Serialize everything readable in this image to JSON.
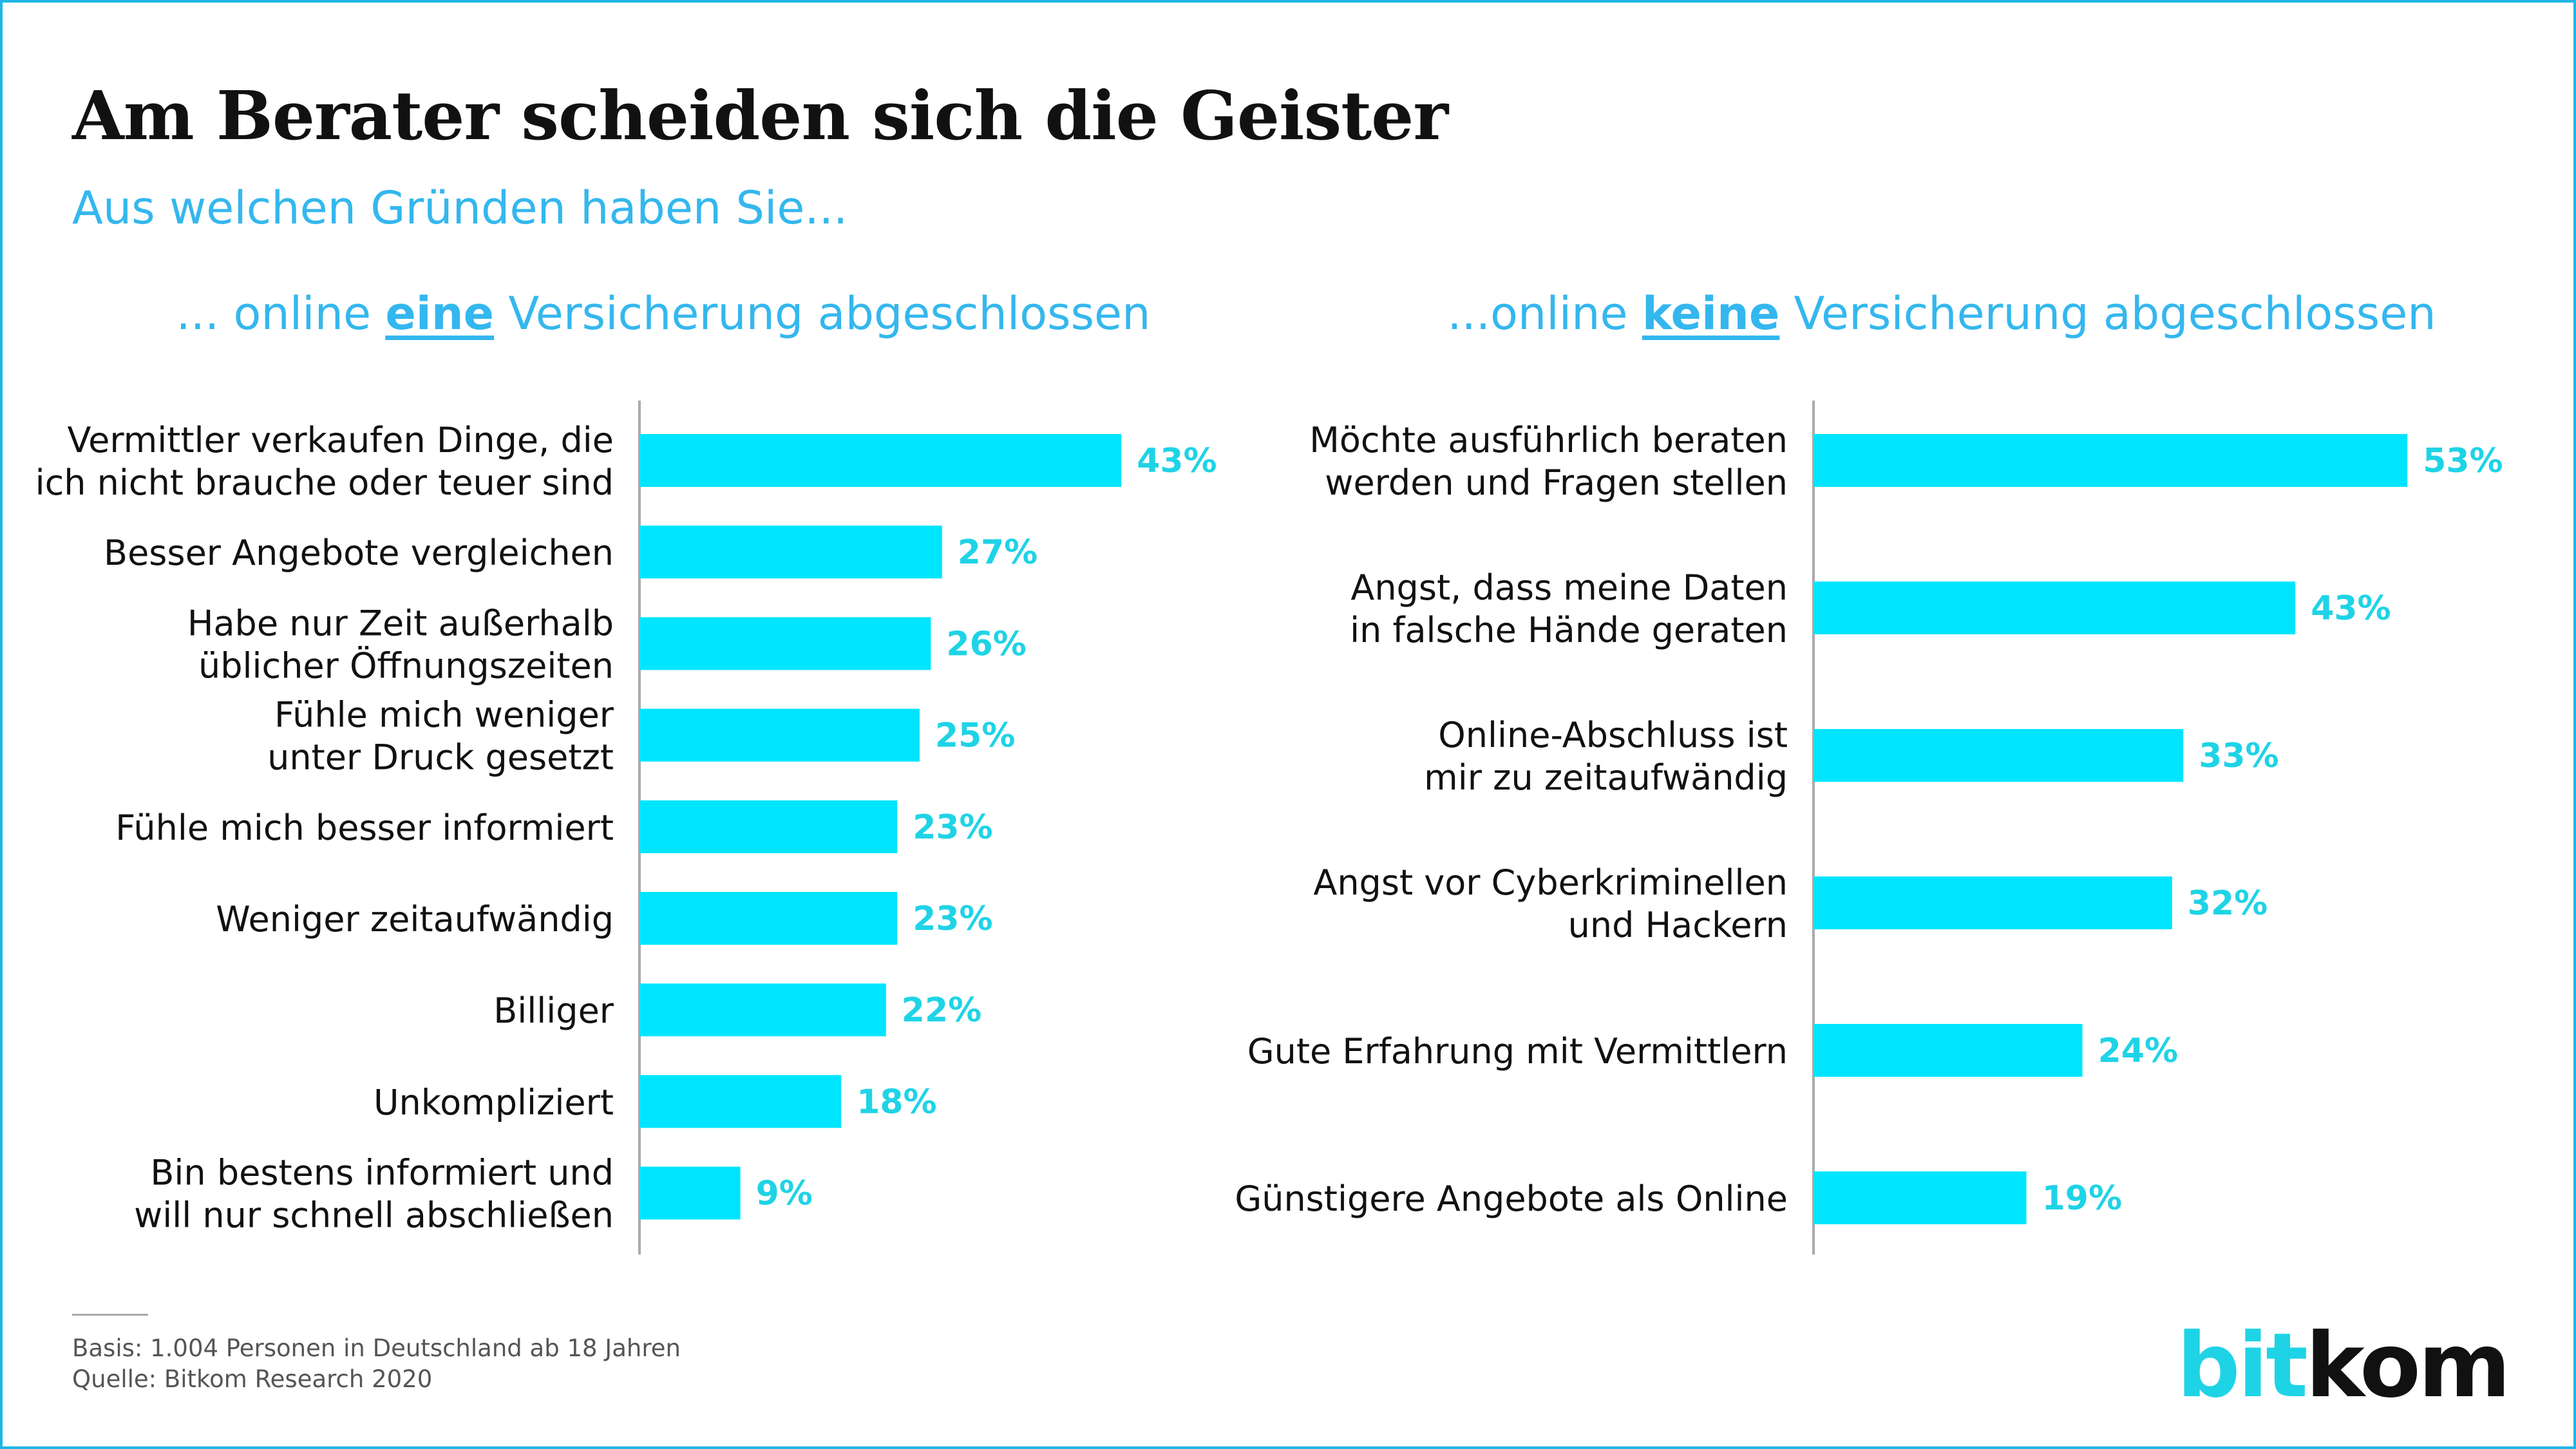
{
  "title": "Am Berater scheiden sich die Geister",
  "subtitle": "Aus welchen Gründen haben Sie...",
  "panels": [
    {
      "prefix": "... online ",
      "emphasis": "eine",
      "suffix": " Versicherung abgeschlossen"
    },
    {
      "prefix": "...online ",
      "emphasis": "keine",
      "suffix": " Versicherung abgeschlossen"
    }
  ],
  "footnote": {
    "basis": "Basis: 1.004 Personen in Deutschland ab 18 Jahren",
    "source": "Quelle: Bitkom Research 2020"
  },
  "logo": {
    "part1": "bit",
    "part2": "kom"
  },
  "colors": {
    "bar": "#00e5ff",
    "value_label": "#1fd3e6",
    "accent": "#34b7ee",
    "axis": "#aaaaaa"
  },
  "chart_data": [
    {
      "type": "bar",
      "orientation": "horizontal",
      "title": "... online eine Versicherung abgeschlossen",
      "value_suffix": "%",
      "categories": [
        [
          "Vermittler verkaufen Dinge, die",
          "ich nicht brauche oder teuer sind"
        ],
        [
          "Besser Angebote vergleichen"
        ],
        [
          "Habe nur Zeit außerhalb",
          "üblicher Öffnungszeiten"
        ],
        [
          "Fühle mich weniger",
          "unter Druck gesetzt"
        ],
        [
          "Fühle mich besser informiert"
        ],
        [
          "Weniger zeitaufwändig"
        ],
        [
          "Billiger"
        ],
        [
          "Unkompliziert"
        ],
        [
          "Bin bestens informiert und",
          "will nur schnell abschließen"
        ]
      ],
      "values": [
        43,
        27,
        26,
        25,
        23,
        23,
        22,
        18,
        9
      ]
    },
    {
      "type": "bar",
      "orientation": "horizontal",
      "title": "...online keine Versicherung abgeschlossen",
      "value_suffix": "%",
      "categories": [
        [
          "Möchte ausführlich beraten",
          "werden und Fragen stellen"
        ],
        [
          "Angst, dass meine Daten",
          "in falsche Hände geraten"
        ],
        [
          "Online-Abschluss ist",
          "mir zu zeitaufwändig"
        ],
        [
          "Angst vor Cyberkriminellen",
          "und Hackern"
        ],
        [
          "Gute Erfahrung mit Vermittlern"
        ],
        [
          "Günstigere Angebote als Online"
        ]
      ],
      "values": [
        53,
        43,
        33,
        32,
        24,
        19
      ]
    }
  ]
}
